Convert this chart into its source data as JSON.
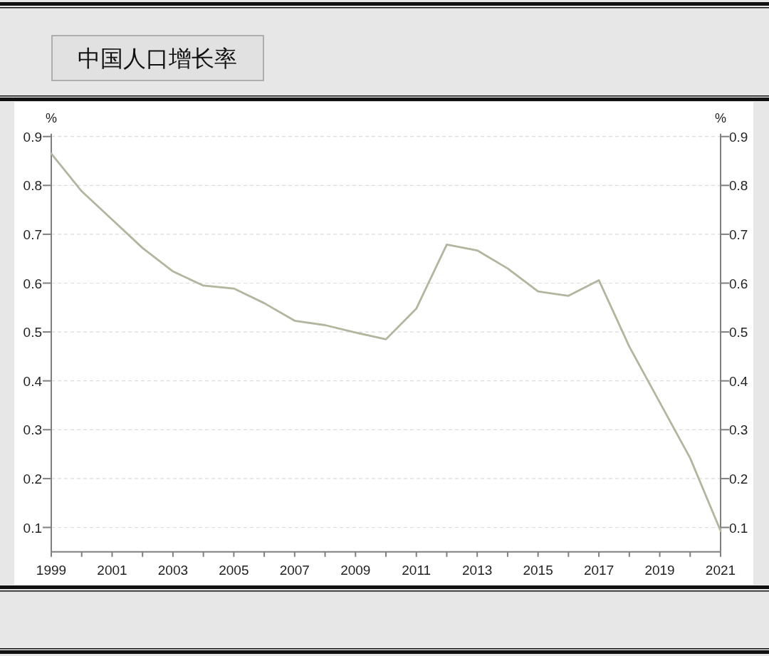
{
  "chart_data": {
    "type": "line",
    "title": "中国人口增长率",
    "ylabel": "%",
    "y2label": "%",
    "x": [
      1999,
      2000,
      2001,
      2002,
      2003,
      2004,
      2005,
      2006,
      2007,
      2008,
      2009,
      2010,
      2011,
      2012,
      2013,
      2014,
      2015,
      2016,
      2017,
      2018,
      2019,
      2020,
      2021
    ],
    "values": [
      0.865,
      0.788,
      0.73,
      0.672,
      0.624,
      0.595,
      0.589,
      0.559,
      0.523,
      0.514,
      0.499,
      0.485,
      0.548,
      0.679,
      0.667,
      0.63,
      0.583,
      0.574,
      0.606,
      0.47,
      0.356,
      0.242,
      0.093
    ],
    "color": "#b3b59f",
    "line_style": "solid",
    "xlim": [
      1999,
      2021
    ],
    "xticks": [
      1999,
      {
        "value": 2000,
        "label": null
      },
      2001,
      {
        "value": 2002,
        "label": null
      },
      2003,
      {
        "value": 2004,
        "label": null
      },
      2005,
      {
        "value": 2006,
        "label": null
      },
      2007,
      {
        "value": 2008,
        "label": null
      },
      2009,
      {
        "value": 2010,
        "label": null
      },
      2011,
      {
        "value": 2012,
        "label": null
      },
      2013,
      {
        "value": 2014,
        "label": null
      },
      2015,
      {
        "value": 2016,
        "label": null
      },
      2017,
      {
        "value": 2018,
        "label": null
      },
      2019,
      {
        "value": 2020,
        "label": null
      },
      2021
    ],
    "ylim": [
      0.05,
      0.9
    ],
    "yticks": [
      0.1,
      0.2,
      0.3,
      0.4,
      0.5,
      0.6,
      0.7,
      0.8,
      0.9
    ],
    "y2lim": [
      0.05,
      0.9
    ],
    "y2ticks": [
      0.1,
      0.2,
      0.3,
      0.4,
      0.5,
      0.6,
      0.7,
      0.8,
      0.9
    ],
    "grid": "y"
  }
}
